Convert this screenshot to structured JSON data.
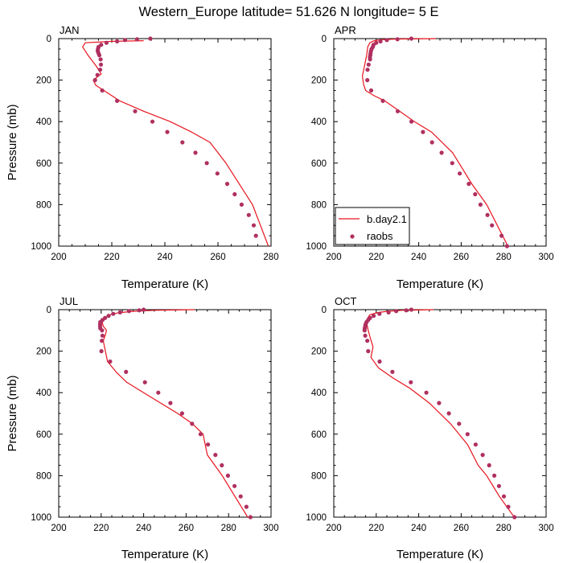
{
  "title": "Western_Europe  latitude= 51.626 N longitude= 5 E",
  "colors": {
    "model": "#e8141e",
    "obs": "#b03060",
    "axis": "#000000"
  },
  "legend": {
    "model_label": "b.day2.1",
    "obs_label": "raobs",
    "placement": "lower-left of APR panel"
  },
  "chart_data": [
    {
      "type": "line",
      "panel": "JAN",
      "xlabel": "Temperature (K)",
      "ylabel": "Pressure (mb)",
      "xlim": [
        200,
        280
      ],
      "xticks": [
        200,
        220,
        240,
        260,
        280
      ],
      "ylim": [
        1000,
        0
      ],
      "yticks": [
        0,
        200,
        400,
        600,
        800,
        1000
      ],
      "series": [
        {
          "name": "b.day2.1",
          "kind": "line",
          "x": [
            232,
            220,
            210,
            209,
            211,
            214,
            216,
            213,
            214,
            217,
            223,
            232,
            242,
            250,
            257,
            263,
            268,
            273,
            276,
            279
          ],
          "y": [
            10,
            13,
            20,
            40,
            80,
            130,
            170,
            200,
            225,
            250,
            300,
            350,
            400,
            450,
            500,
            600,
            700,
            800,
            900,
            1000
          ]
        },
        {
          "name": "raobs",
          "kind": "scatter",
          "x": [
            234.5,
            229.5,
            225,
            222,
            218,
            216,
            215,
            214.8,
            214.7,
            215,
            215.3,
            215.8,
            215.9,
            215.6,
            214.6,
            213.7,
            216.4,
            222,
            228.8,
            235.3,
            240.9,
            246.6,
            251.5,
            255.8,
            259.8,
            263.5,
            266.3,
            268.9,
            271.6,
            273.5,
            274.3
          ],
          "y": [
            0,
            3,
            7,
            13,
            20,
            30,
            40,
            50,
            60,
            70,
            80,
            100,
            125,
            150,
            175,
            200,
            250,
            300,
            350,
            400,
            450,
            500,
            550,
            600,
            650,
            700,
            750,
            800,
            850,
            900,
            950
          ]
        }
      ]
    },
    {
      "type": "line",
      "panel": "APR",
      "xlabel": "Temperature (K)",
      "ylabel": "",
      "xlim": [
        200,
        300
      ],
      "xticks": [
        200,
        220,
        240,
        260,
        280,
        300
      ],
      "ylim": [
        1000,
        0
      ],
      "yticks": [
        0,
        200,
        400,
        600,
        800,
        1000
      ],
      "series": [
        {
          "name": "b.day2.1",
          "kind": "line",
          "x": [
            248,
            230,
            222,
            219,
            217,
            216,
            215.5,
            214.5,
            213.5,
            214,
            215,
            219,
            224,
            231,
            238,
            246,
            256,
            265,
            272,
            277,
            282
          ],
          "y": [
            0,
            2,
            5,
            10,
            20,
            40,
            80,
            130,
            180,
            220,
            250,
            275,
            300,
            350,
            400,
            450,
            550,
            700,
            800,
            900,
            1000
          ]
        },
        {
          "name": "raobs",
          "kind": "scatter",
          "x": [
            236.5,
            230,
            225,
            222,
            220,
            218.7,
            218.4,
            217.8,
            217.5,
            217.3,
            217.2,
            217,
            217.1,
            216.4,
            215.9,
            215.8,
            217.6,
            223.1,
            230.1,
            236.6,
            242,
            246.3,
            250.8,
            255.8,
            259.3,
            263.6,
            266.6,
            269.1,
            272.4,
            274.5,
            279,
            281.6
          ],
          "y": [
            0,
            3,
            7,
            13,
            20,
            30,
            40,
            50,
            60,
            70,
            80,
            90,
            100,
            125,
            150,
            200,
            250,
            300,
            350,
            400,
            450,
            500,
            550,
            600,
            650,
            700,
            750,
            800,
            850,
            900,
            950,
            1000
          ]
        }
      ]
    },
    {
      "type": "line",
      "panel": "JUL",
      "xlabel": "Temperature (K)",
      "ylabel": "Pressure (mb)",
      "xlim": [
        200,
        300
      ],
      "xticks": [
        200,
        220,
        240,
        260,
        280,
        300
      ],
      "ylim": [
        1000,
        0
      ],
      "yticks": [
        0,
        200,
        400,
        600,
        800,
        1000
      ],
      "series": [
        {
          "name": "b.day2.1",
          "kind": "line",
          "x": [
            264,
            245,
            235,
            228,
            224,
            222,
            220.5,
            221,
            222.5,
            222,
            221,
            223,
            227,
            232,
            240,
            248,
            256,
            263,
            268,
            270,
            277,
            283,
            289
          ],
          "y": [
            0,
            3,
            8,
            15,
            25,
            40,
            60,
            80,
            100,
            120,
            150,
            250,
            300,
            350,
            400,
            450,
            500,
            550,
            600,
            700,
            800,
            900,
            1000
          ]
        },
        {
          "name": "raobs",
          "kind": "scatter",
          "x": [
            240,
            237.9,
            233.1,
            228.9,
            225.7,
            223.5,
            221.8,
            220.6,
            219.6,
            219.5,
            219.5,
            219.6,
            220.4,
            220.6,
            220.3,
            220.1,
            224.2,
            231.7,
            240.6,
            246.9,
            252.6,
            258.1,
            262.8,
            266.8,
            270.3,
            273.8,
            276.8,
            279.7,
            282.8,
            285.7,
            288.4,
            290.3
          ],
          "y": [
            0,
            3,
            7,
            13,
            20,
            30,
            40,
            50,
            60,
            70,
            80,
            90,
            100,
            125,
            150,
            200,
            250,
            300,
            350,
            400,
            450,
            500,
            550,
            600,
            650,
            700,
            750,
            800,
            850,
            900,
            950,
            1000
          ]
        }
      ]
    },
    {
      "type": "line",
      "panel": "OCT",
      "xlabel": "Temperature (K)",
      "ylabel": "",
      "xlim": [
        200,
        300
      ],
      "xticks": [
        200,
        220,
        240,
        260,
        280,
        300
      ],
      "ylim": [
        1000,
        0
      ],
      "yticks": [
        0,
        200,
        400,
        600,
        800,
        1000
      ],
      "series": [
        {
          "name": "b.day2.1",
          "kind": "line",
          "x": [
            247,
            232,
            225,
            220,
            217,
            216,
            215.5,
            216,
            217,
            218.5,
            217.5,
            221,
            228,
            236,
            245,
            255,
            263,
            268,
            272,
            278,
            285
          ],
          "y": [
            0,
            3,
            8,
            15,
            25,
            40,
            60,
            90,
            130,
            180,
            230,
            280,
            330,
            380,
            450,
            550,
            650,
            750,
            800,
            900,
            1000
          ]
        },
        {
          "name": "raobs",
          "kind": "scatter",
          "x": [
            236.5,
            234.1,
            229.4,
            225.8,
            221.5,
            218.8,
            217.1,
            216.2,
            215.4,
            215,
            214.8,
            214.6,
            214.5,
            214.8,
            215.8,
            216.2,
            221.6,
            227.6,
            236.3,
            243.6,
            249.6,
            254.2,
            259,
            263,
            266.8,
            270.1,
            273.2,
            275.6,
            277.8,
            280.1,
            282.2,
            285.1
          ],
          "y": [
            0,
            3,
            7,
            13,
            20,
            30,
            40,
            50,
            60,
            70,
            80,
            90,
            100,
            125,
            150,
            200,
            250,
            300,
            350,
            400,
            450,
            500,
            550,
            600,
            650,
            700,
            750,
            800,
            850,
            900,
            950,
            1000
          ]
        }
      ]
    }
  ]
}
